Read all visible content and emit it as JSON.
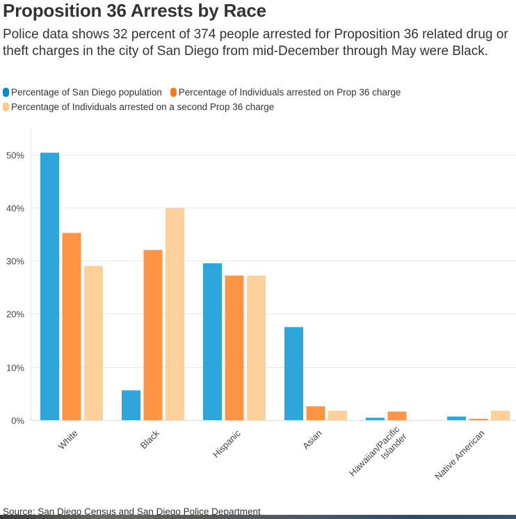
{
  "title": "Proposition 36 Arrests by Race",
  "subtitle": "Police data shows 32 percent of 374 people arrested for Proposition 36 related drug or theft charges in the city of San Diego from mid-December through May were Black.",
  "source": "Source: San Diego Census and San Diego Police Department",
  "colors": {
    "population": "#2ea6dc",
    "arrested": "#fe9444",
    "second": "#fdd09c",
    "legend_population": "#0f8bd6",
    "legend_arrested": "#fb7d18",
    "legend_second": "#fdc88c",
    "grid": "#e8e8e8"
  },
  "chart_data": {
    "type": "bar",
    "title": "Proposition 36 Arrests by Race",
    "xlabel": "",
    "ylabel": "",
    "ylim": [
      0,
      52
    ],
    "yticks": [
      0,
      10,
      20,
      30,
      40,
      50
    ],
    "ytick_labels": [
      "0%",
      "10%",
      "20%",
      "30%",
      "40%",
      "50%"
    ],
    "grid": true,
    "legend_position": "top-left",
    "categories": [
      "White",
      "Black",
      "Hispanic",
      "Asian",
      "Hawaiian/Pacific Islander",
      "Native American"
    ],
    "category_lines": [
      [
        "White"
      ],
      [
        "Black"
      ],
      [
        "Hispanic"
      ],
      [
        "Asian"
      ],
      [
        "Hawaiian/Pacific",
        "Islander"
      ],
      [
        "Native American"
      ]
    ],
    "series": [
      {
        "name": "Percentage of San Diego population",
        "key": "population",
        "values": [
          50.3,
          5.6,
          29.5,
          17.5,
          0.45,
          0.65
        ]
      },
      {
        "name": "Percentage of Individuals arrested on Prop 36 charge",
        "key": "arrested",
        "values": [
          35.2,
          32.0,
          27.2,
          2.6,
          1.6,
          0.25
        ]
      },
      {
        "name": "Percentage of Individuals arrested on a second Prop 36 charge",
        "key": "second",
        "values": [
          29.0,
          39.9,
          27.2,
          1.75,
          0,
          1.75
        ]
      }
    ]
  }
}
